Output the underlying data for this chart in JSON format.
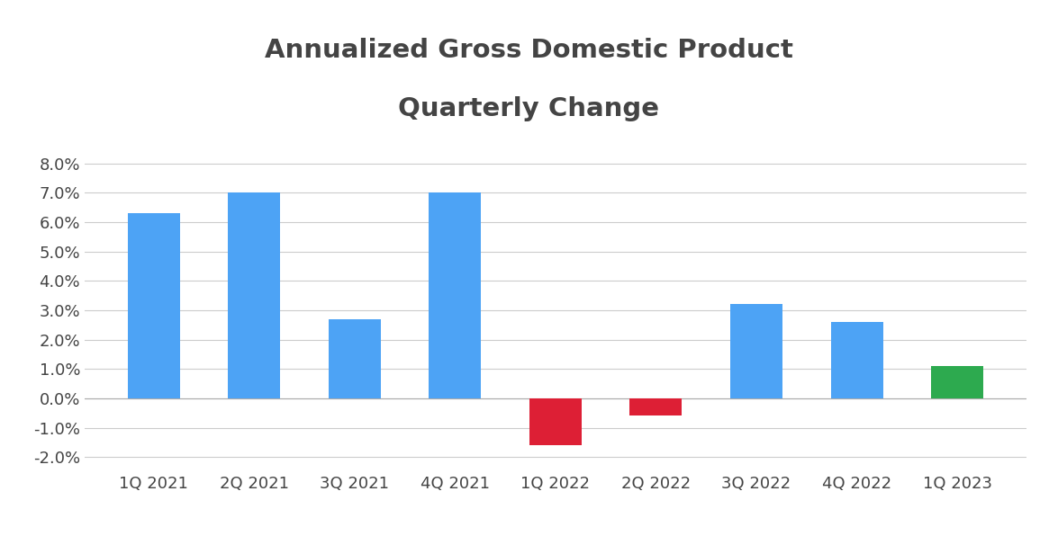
{
  "categories": [
    "1Q 2021",
    "2Q 2021",
    "3Q 2021",
    "4Q 2021",
    "1Q 2022",
    "2Q 2022",
    "3Q 2022",
    "4Q 2022",
    "1Q 2023"
  ],
  "values": [
    0.063,
    0.07,
    0.027,
    0.07,
    -0.016,
    -0.006,
    0.032,
    0.026,
    0.011
  ],
  "bar_colors": [
    "#4da3f5",
    "#4da3f5",
    "#4da3f5",
    "#4da3f5",
    "#dd1f35",
    "#dd1f35",
    "#4da3f5",
    "#4da3f5",
    "#2daa4f"
  ],
  "title_line1": "Annualized Gross Domestic Product",
  "title_line2": "Quarterly Change",
  "ylim": [
    -0.025,
    0.09
  ],
  "yticks": [
    -0.02,
    -0.01,
    0.0,
    0.01,
    0.02,
    0.03,
    0.04,
    0.05,
    0.06,
    0.07,
    0.08
  ],
  "background_color": "#ffffff",
  "grid_color": "#cccccc",
  "title_fontsize": 21,
  "tick_fontsize": 13,
  "bar_width": 0.52
}
